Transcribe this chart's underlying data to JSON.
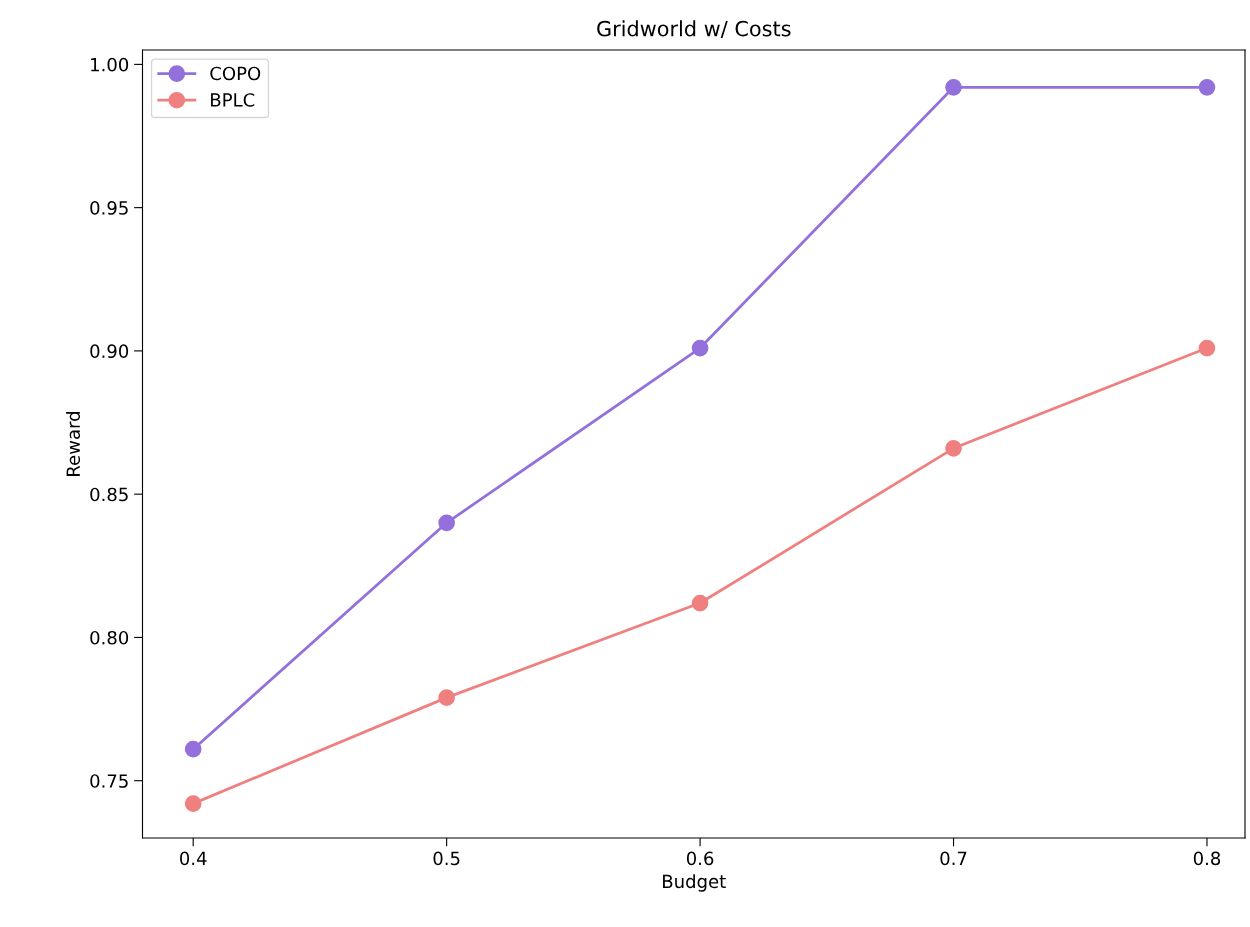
{
  "chart_data": {
    "type": "line",
    "title": "Gridworld w/ Costs",
    "xlabel": "Budget",
    "ylabel": "Reward",
    "x": [
      0.4,
      0.5,
      0.6,
      0.7,
      0.8
    ],
    "series": [
      {
        "name": "COPO",
        "color": "#9370db",
        "values": [
          0.761,
          0.84,
          0.901,
          0.992,
          0.992
        ]
      },
      {
        "name": "BPLC",
        "color": "#f08080",
        "values": [
          0.742,
          0.779,
          0.812,
          0.866,
          0.901
        ]
      }
    ],
    "xlim": [
      0.38,
      0.815
    ],
    "xticks": [
      0.4,
      0.5,
      0.6,
      0.7,
      0.8
    ],
    "ylim": [
      0.73,
      1.005
    ],
    "yticks": [
      {
        "value": 0.75,
        "label": "0.75"
      },
      {
        "value": 0.8,
        "label": "0.80"
      },
      {
        "value": 0.85,
        "label": "0.85"
      },
      {
        "value": 0.9,
        "label": "0.90"
      },
      {
        "value": 0.95,
        "label": "0.95"
      },
      {
        "value": 1.0,
        "label": "1.00"
      }
    ],
    "legend": "top left",
    "marker": "circle",
    "line_style": "solid",
    "grid": false
  }
}
